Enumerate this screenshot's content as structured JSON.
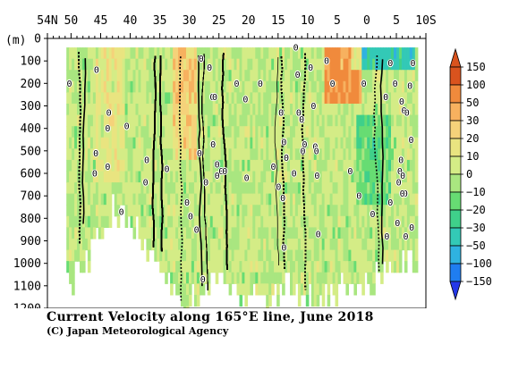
{
  "chart_data": {
    "type": "heatmap",
    "title": "Current Velocity along 165°E line, June 2018",
    "credit": "(C) Japan Meteorological Agency",
    "ylabel": "(m)",
    "x_ticks": [
      {
        "value": 54,
        "label": "54N"
      },
      {
        "value": 50,
        "label": "50"
      },
      {
        "value": 45,
        "label": "45"
      },
      {
        "value": 40,
        "label": "40"
      },
      {
        "value": 35,
        "label": "35"
      },
      {
        "value": 30,
        "label": "30"
      },
      {
        "value": 25,
        "label": "25"
      },
      {
        "value": 20,
        "label": "20"
      },
      {
        "value": 15,
        "label": "15"
      },
      {
        "value": 10,
        "label": "10"
      },
      {
        "value": 5,
        "label": "5"
      },
      {
        "value": 0,
        "label": "0"
      },
      {
        "value": -5,
        "label": "5"
      },
      {
        "value": -10,
        "label": "10S"
      }
    ],
    "xlim": [
      54,
      -10
    ],
    "y_ticks": [
      0,
      100,
      200,
      300,
      400,
      500,
      600,
      700,
      800,
      900,
      1000,
      1100,
      1200
    ],
    "ylim": [
      0,
      1200
    ],
    "colorbar": {
      "levels": [
        "150",
        "100",
        "50",
        "30",
        "20",
        "10",
        "0",
        "−10",
        "−20",
        "−30",
        "−50",
        "−100",
        "−150"
      ],
      "colors": [
        "#d9531e",
        "#f08a3c",
        "#f7b15f",
        "#f5d27a",
        "#e9e480",
        "#d4ec86",
        "#a9e680",
        "#67dc73",
        "#3fd08a",
        "#33c9b6",
        "#2fb2e0",
        "#1f7df0",
        "#2438e8"
      ]
    },
    "zero_contour_labels": [
      {
        "lat": 45.7,
        "depth": 140
      },
      {
        "lat": 50.3,
        "depth": 200
      },
      {
        "lat": 43.6,
        "depth": 330
      },
      {
        "lat": 43.8,
        "depth": 400
      },
      {
        "lat": 40.6,
        "depth": 390
      },
      {
        "lat": 45.8,
        "depth": 510
      },
      {
        "lat": 43.8,
        "depth": 570
      },
      {
        "lat": 46.0,
        "depth": 600
      },
      {
        "lat": 37.2,
        "depth": 540
      },
      {
        "lat": 37.4,
        "depth": 640
      },
      {
        "lat": 41.5,
        "depth": 770
      },
      {
        "lat": 33.8,
        "depth": 580
      },
      {
        "lat": 30.4,
        "depth": 730
      },
      {
        "lat": 29.8,
        "depth": 790
      },
      {
        "lat": 28.8,
        "depth": 850
      },
      {
        "lat": 27.7,
        "depth": 1070
      },
      {
        "lat": 28.3,
        "depth": 510
      },
      {
        "lat": 27.2,
        "depth": 640
      },
      {
        "lat": 26.0,
        "depth": 470
      },
      {
        "lat": 25.3,
        "depth": 560
      },
      {
        "lat": 24.6,
        "depth": 590
      },
      {
        "lat": 24.0,
        "depth": 590
      },
      {
        "lat": 25.3,
        "depth": 610
      },
      {
        "lat": 28.0,
        "depth": 90
      },
      {
        "lat": 26.6,
        "depth": 130
      },
      {
        "lat": 26.1,
        "depth": 260
      },
      {
        "lat": 25.7,
        "depth": 260
      },
      {
        "lat": 22.0,
        "depth": 200
      },
      {
        "lat": 20.5,
        "depth": 270
      },
      {
        "lat": 20.3,
        "depth": 620
      },
      {
        "lat": 18.0,
        "depth": 200
      },
      {
        "lat": 15.8,
        "depth": 570
      },
      {
        "lat": 14.9,
        "depth": 660
      },
      {
        "lat": 14.2,
        "depth": 710
      },
      {
        "lat": 14.0,
        "depth": 930
      },
      {
        "lat": 14.5,
        "depth": 330
      },
      {
        "lat": 14.0,
        "depth": 460
      },
      {
        "lat": 13.6,
        "depth": 530
      },
      {
        "lat": 12.3,
        "depth": 600
      },
      {
        "lat": 11.7,
        "depth": 160
      },
      {
        "lat": 11.5,
        "depth": 330
      },
      {
        "lat": 11.0,
        "depth": 360
      },
      {
        "lat": 10.8,
        "depth": 500
      },
      {
        "lat": 10.5,
        "depth": 470
      },
      {
        "lat": 9.5,
        "depth": 130
      },
      {
        "lat": 9.0,
        "depth": 300
      },
      {
        "lat": 8.7,
        "depth": 480
      },
      {
        "lat": 8.5,
        "depth": 500
      },
      {
        "lat": 8.4,
        "depth": 610
      },
      {
        "lat": 8.2,
        "depth": 870
      },
      {
        "lat": 12.0,
        "depth": 40
      },
      {
        "lat": 6.8,
        "depth": 100
      },
      {
        "lat": 5.8,
        "depth": 200
      },
      {
        "lat": 2.8,
        "depth": 590
      },
      {
        "lat": 1.3,
        "depth": 700
      },
      {
        "lat": 0.5,
        "depth": 200
      },
      {
        "lat": -1.0,
        "depth": 780
      },
      {
        "lat": -3.2,
        "depth": 260
      },
      {
        "lat": -3.4,
        "depth": 880
      },
      {
        "lat": -4.0,
        "depth": 110
      },
      {
        "lat": -4.8,
        "depth": 200
      },
      {
        "lat": -5.2,
        "depth": 820
      },
      {
        "lat": -6.5,
        "depth": 690
      },
      {
        "lat": -6.3,
        "depth": 320
      },
      {
        "lat": -6.6,
        "depth": 880
      },
      {
        "lat": -6.0,
        "depth": 690
      },
      {
        "lat": -5.8,
        "depth": 540
      },
      {
        "lat": -5.6,
        "depth": 590
      },
      {
        "lat": -5.4,
        "depth": 640
      },
      {
        "lat": -5.9,
        "depth": 280
      },
      {
        "lat": -6.8,
        "depth": 330
      },
      {
        "lat": -7.5,
        "depth": 450
      },
      {
        "lat": -7.3,
        "depth": 210
      },
      {
        "lat": -7.8,
        "depth": 110
      },
      {
        "lat": -7.6,
        "depth": 840
      },
      {
        "lat": -4.0,
        "depth": 730
      },
      {
        "lat": -6.1,
        "depth": 610
      }
    ],
    "data_extent_bottom": [
      {
        "lat": 51.0,
        "depth": 1070
      },
      {
        "lat": 49.0,
        "depth": 1000
      },
      {
        "lat": 47.0,
        "depth": 920
      },
      {
        "lat": 45.0,
        "depth": 800
      },
      {
        "lat": 43.0,
        "depth": 730
      },
      {
        "lat": 41.0,
        "depth": 760
      },
      {
        "lat": 39.0,
        "depth": 830
      },
      {
        "lat": 37.0,
        "depth": 900
      },
      {
        "lat": 35.0,
        "depth": 1000
      },
      {
        "lat": 33.0,
        "depth": 1100
      },
      {
        "lat": 31.0,
        "depth": 1200
      },
      {
        "lat": 29.0,
        "depth": 1120
      },
      {
        "lat": 27.0,
        "depth": 1080
      },
      {
        "lat": 25.0,
        "depth": 1000
      },
      {
        "lat": 23.0,
        "depth": 1050
      },
      {
        "lat": 21.0,
        "depth": 1120
      },
      {
        "lat": 19.0,
        "depth": 1100
      },
      {
        "lat": 17.0,
        "depth": 1150
      },
      {
        "lat": 15.0,
        "depth": 1080
      },
      {
        "lat": 13.0,
        "depth": 1060
      },
      {
        "lat": 11.0,
        "depth": 1100
      },
      {
        "lat": 9.0,
        "depth": 1120
      },
      {
        "lat": 7.0,
        "depth": 1150
      },
      {
        "lat": 5.0,
        "depth": 1060
      },
      {
        "lat": 3.0,
        "depth": 1050
      },
      {
        "lat": 1.0,
        "depth": 1030
      },
      {
        "lat": -1.0,
        "depth": 1050
      },
      {
        "lat": -3.0,
        "depth": 1020
      },
      {
        "lat": -5.0,
        "depth": 990
      },
      {
        "lat": -7.0,
        "depth": 980
      },
      {
        "lat": -8.5,
        "depth": 980
      }
    ],
    "features": [
      {
        "name": "warm-surface-band",
        "lat_from": 7.5,
        "lat_to": 1.0,
        "depth_from": 40,
        "depth_to": 250,
        "value": 60
      },
      {
        "name": "cold-surface-band",
        "lat_from": 3.0,
        "lat_to": -8.0,
        "depth_from": 40,
        "depth_to": 120,
        "value": -40
      },
      {
        "name": "kuroshio-extension-positive",
        "lat_from": 33.0,
        "lat_to": 29.0,
        "depth_from": 40,
        "depth_to": 500,
        "value": 25
      },
      {
        "name": "subarctic-positive",
        "lat_from": 46.0,
        "lat_to": 41.0,
        "depth_from": 40,
        "depth_to": 600,
        "value": 12
      },
      {
        "name": "deep-negative-equator",
        "lat_from": 2.0,
        "lat_to": -4.0,
        "depth_from": 300,
        "depth_to": 700,
        "value": -18
      }
    ]
  }
}
